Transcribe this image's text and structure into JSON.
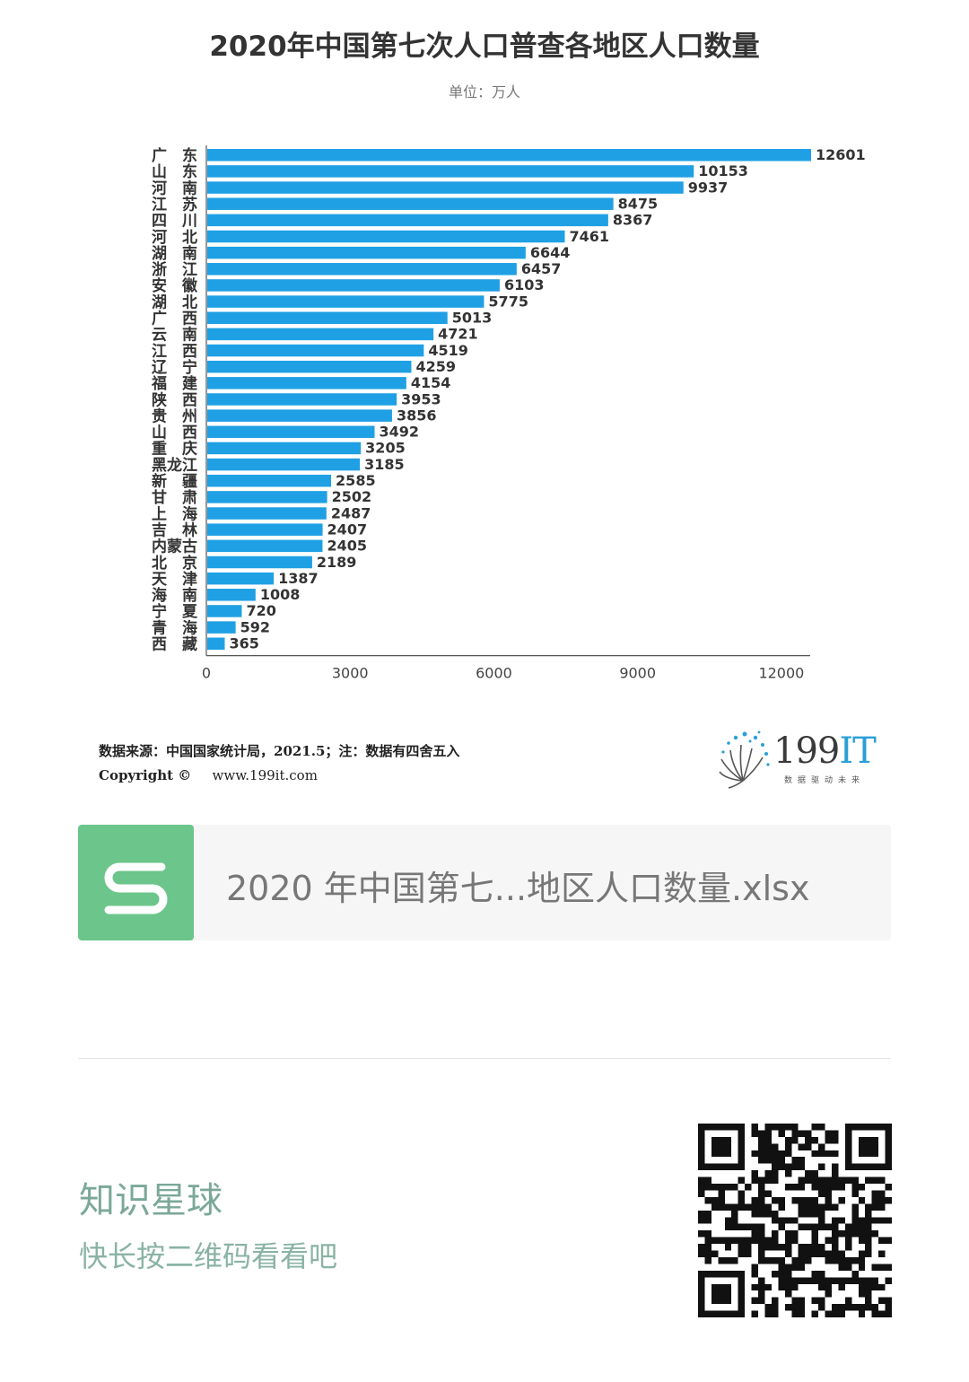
{
  "chart_data": {
    "type": "bar",
    "orientation": "horizontal",
    "title": "2020年中国第七次人口普查各地区人口数量",
    "subtitle": "单位：万人",
    "categories": [
      "广　东",
      "山　东",
      "河　南",
      "江　苏",
      "四　川",
      "河　北",
      "湖　南",
      "浙　江",
      "安　徽",
      "湖　北",
      "广　西",
      "云　南",
      "江　西",
      "辽　宁",
      "福　建",
      "陕　西",
      "贵　州",
      "山　西",
      "重　庆",
      "黑龙江",
      "新　疆",
      "甘　肃",
      "上　海",
      "吉　林",
      "内蒙古",
      "北　京",
      "天　津",
      "海　南",
      "宁　夏",
      "青　海",
      "西　藏"
    ],
    "values": [
      12601,
      10153,
      9937,
      8475,
      8367,
      7461,
      6644,
      6457,
      6103,
      5775,
      5013,
      4721,
      4519,
      4259,
      4154,
      3953,
      3856,
      3492,
      3205,
      3185,
      2585,
      2502,
      2487,
      2407,
      2405,
      2189,
      1387,
      1008,
      720,
      592,
      365
    ],
    "xlim": [
      0,
      12601
    ],
    "xticks": [
      0,
      3000,
      6000,
      9000,
      12000
    ],
    "bar_color": "#1fa0e4"
  },
  "source_note": "数据来源：中国国家统计局，2021.5；注：数据有四舍五入",
  "copyright_label": "Copyright ©",
  "copyright_url": "www.199it.com",
  "logo": {
    "brand_num": "199",
    "brand_it": "IT",
    "tagline": "数据驱动未来"
  },
  "file_card": {
    "name": "2020 年中国第七...地区人口数量.xlsx",
    "icon_letter": "S"
  },
  "promo": {
    "title": "知识星球",
    "subtitle": "快长按二维码看看吧"
  }
}
